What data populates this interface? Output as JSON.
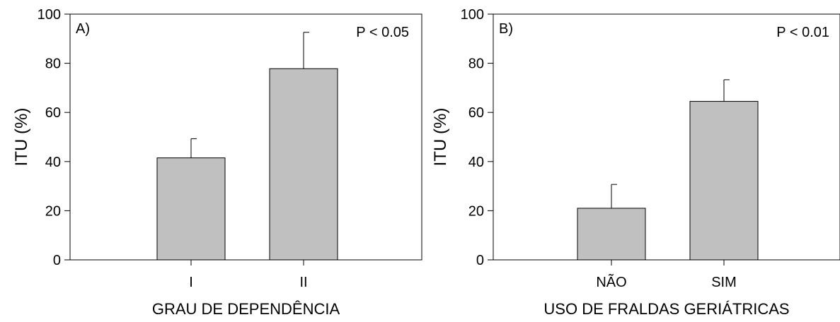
{
  "chart_data": [
    {
      "type": "bar",
      "panel_label": "A)",
      "annotation": "P < 0.05",
      "xlabel": "GRAU DE DEPENDÊNCIA",
      "ylabel": "ITU (%)",
      "ylim": [
        0,
        100
      ],
      "yticks": [
        "0",
        "20",
        "40",
        "60",
        "80",
        "100"
      ],
      "categories": [
        "I",
        "II"
      ],
      "values": [
        41.5,
        77.8
      ],
      "errors": [
        7.8,
        14.8
      ],
      "bar_color": "#c0c0c0",
      "grid": false
    },
    {
      "type": "bar",
      "panel_label": "B)",
      "annotation": "P < 0.01",
      "xlabel": "USO DE FRALDAS GERIÁTRICAS",
      "ylabel": "ITU (%)",
      "ylim": [
        0,
        100
      ],
      "yticks": [
        "0",
        "20",
        "40",
        "60",
        "80",
        "100"
      ],
      "categories": [
        "NÃO",
        "SIM"
      ],
      "values": [
        21.0,
        64.5
      ],
      "errors": [
        9.7,
        8.8
      ],
      "bar_color": "#c0c0c0",
      "grid": false
    }
  ]
}
